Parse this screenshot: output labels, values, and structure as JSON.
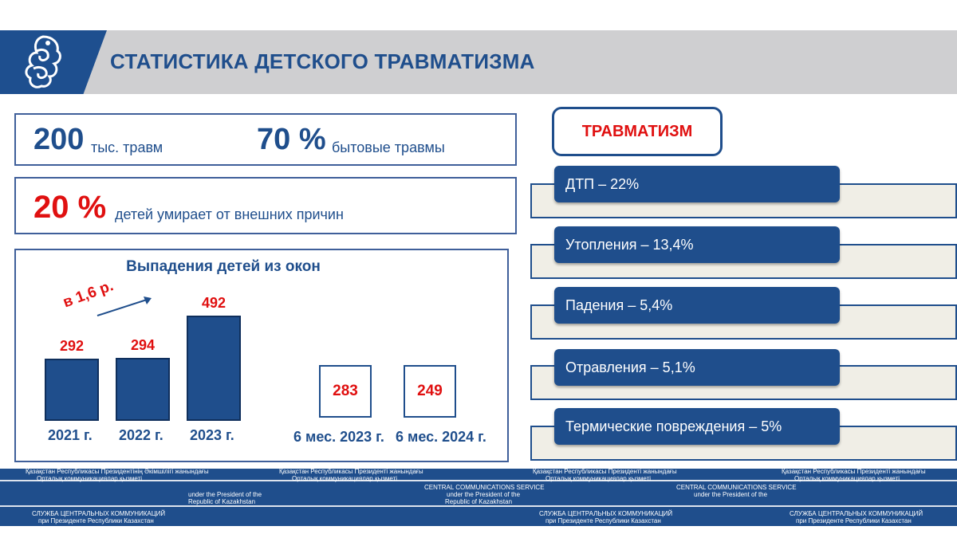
{
  "header": {
    "title": "СТАТИСТИКА ДЕТСКОГО ТРАВМАТИЗМА",
    "logo": "snow-leopard-emblem"
  },
  "stats": {
    "injuries_value": "200",
    "injuries_unit": "тыс. травм",
    "household_value": "70 %",
    "household_unit": "бытовые травмы",
    "deaths_value": "20 %",
    "deaths_unit": "детей умирает от внешних причин"
  },
  "chart_data": {
    "type": "bar",
    "title": "Выпадения детей из окон",
    "annotation": "в 1,6 р.",
    "categories": [
      "2021 г.",
      "2022 г.",
      "2023 г."
    ],
    "values": [
      292,
      294,
      492
    ],
    "half_year": [
      {
        "label": "6 мес. 2023 г.",
        "value": 283
      },
      {
        "label": "6 мес. 2024 г.",
        "value": 249
      }
    ]
  },
  "trauma": {
    "heading": "ТРАВМАТИЗМ",
    "items": [
      "ДТП – 22%",
      "Утопления – 13,4%",
      "Падения – 5,4%",
      "Отравления – 5,1%",
      "Термические повреждения – 5%"
    ]
  },
  "footer": {
    "r1_a": "Қазақстан Республикасы Президентінің Әкімшілігі жанындағы",
    "r1_b": "Орталық коммуникациялар қызметі",
    "r1_c": "Қазақстан Республикасы Президенті жанындағы",
    "r1_d": "Орталық коммуникациялар қызметі",
    "r1_e": "Қазақстан Республикасы Президенті жанындағы",
    "r1_f": "Орталық коммуникациялар қызметі",
    "r1_g": "Қазақстан Республикасы Президенті жанындағы",
    "r1_h": "Орталық коммуникациялар қызметі",
    "r2_a": "under the President of the",
    "r2_b": "Republic of Kazakhstan",
    "r2_c": "CENTRAL COMMUNICATIONS SERVICE",
    "r2_d": "under the President of the",
    "r2_e": "Republic of Kazakhstan",
    "r2_f": "CENTRAL COMMUNICATIONS SERVICE",
    "r2_g": "under the President of the",
    "r3_a": "СЛУЖБА ЦЕНТРАЛЬНЫХ КОММУНИКАЦИЙ",
    "r3_b": "при Президенте Республики Казахстан",
    "r3_c": "СЛУЖБА ЦЕНТРАЛЬНЫХ КОММУНИКАЦИЙ",
    "r3_d": "при Президенте Республики Казахстан",
    "r3_e": "СЛУЖБА ЦЕНТРАЛЬНЫХ КОММУНИКАЦИЙ",
    "r3_f": "при Президенте Республики Казахстан"
  }
}
